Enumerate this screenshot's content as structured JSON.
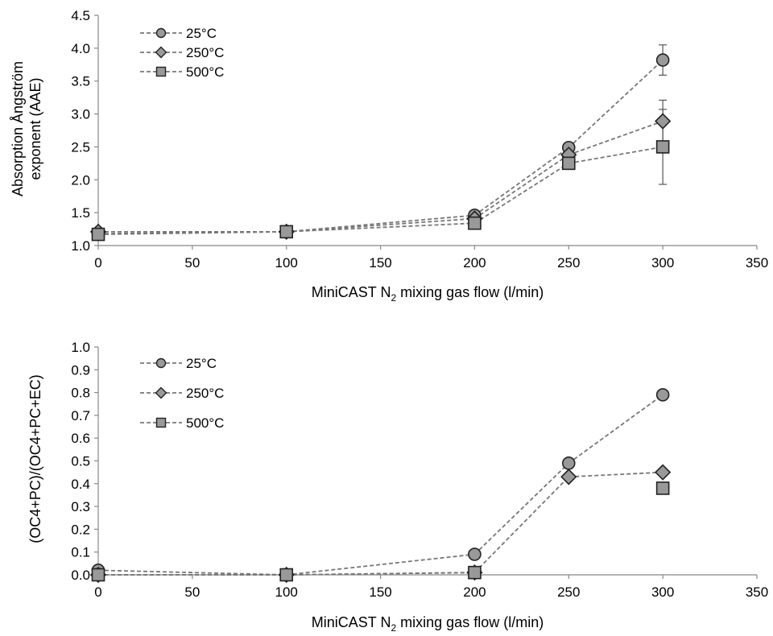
{
  "chart_data": [
    {
      "type": "line",
      "x": [
        0,
        100,
        200,
        250,
        300
      ],
      "xlabel_prefix": "MiniCAST N",
      "xlabel_sub": "2",
      "xlabel_suffix": " mixing gas flow (l/min)",
      "ylabel_lines": [
        "Absorption Ångström",
        "exponent (AAE)"
      ],
      "xlim": [
        0,
        350
      ],
      "ylim": [
        1.0,
        4.5
      ],
      "xticks": [
        "0",
        "50",
        "100",
        "150",
        "200",
        "250",
        "300",
        "350"
      ],
      "yticks": [
        "1.0",
        "1.5",
        "2.0",
        "2.5",
        "3.0",
        "3.5",
        "4.0",
        "4.5"
      ],
      "grid": false,
      "legend_position": "top-left",
      "series": [
        {
          "name": "25°C",
          "marker": "circle",
          "values": [
            1.18,
            1.21,
            1.46,
            2.49,
            3.82
          ],
          "error": [
            null,
            null,
            null,
            null,
            0.23
          ]
        },
        {
          "name": "250°C",
          "marker": "diamond",
          "values": [
            1.21,
            1.21,
            1.41,
            2.38,
            2.89
          ],
          "error": [
            null,
            null,
            null,
            null,
            0.32
          ]
        },
        {
          "name": "500°C",
          "marker": "square",
          "values": [
            1.17,
            1.21,
            1.34,
            2.25,
            2.5
          ],
          "error": [
            null,
            null,
            null,
            null,
            0.57
          ]
        }
      ]
    },
    {
      "type": "line",
      "x": [
        0,
        100,
        200,
        250,
        300
      ],
      "xlabel_prefix": "MiniCAST N",
      "xlabel_sub": "2",
      "xlabel_suffix": " mixing gas flow (l/min)",
      "ylabel_lines": [
        "(OC4+PC)/(OC4+PC+EC)"
      ],
      "xlim": [
        0,
        350
      ],
      "ylim": [
        0.0,
        1.0
      ],
      "xticks": [
        "0",
        "50",
        "100",
        "150",
        "200",
        "250",
        "300",
        "350"
      ],
      "yticks": [
        "0.0",
        "0.1",
        "0.2",
        "0.3",
        "0.4",
        "0.5",
        "0.6",
        "0.7",
        "0.8",
        "0.9",
        "1.0"
      ],
      "grid": false,
      "legend_position": "top-left",
      "series": [
        {
          "name": "25°C",
          "marker": "circle",
          "values": [
            0.02,
            0.0,
            0.09,
            0.49,
            0.79
          ],
          "connect": [
            true,
            true,
            true,
            true
          ]
        },
        {
          "name": "250°C",
          "marker": "diamond",
          "values": [
            0.0,
            0.0,
            0.01,
            0.43,
            0.45
          ],
          "connect": [
            true,
            true,
            true,
            true
          ]
        },
        {
          "name": "500°C",
          "marker": "square",
          "values": [
            0.0,
            0.0,
            0.01,
            null,
            0.38
          ],
          "connect": [
            true,
            true,
            false,
            false
          ]
        }
      ]
    }
  ],
  "colors": {
    "line": "#777777",
    "marker_fill": "#999999",
    "marker_stroke": "#222222",
    "axis": "#888888",
    "error_bar": "#555555"
  }
}
